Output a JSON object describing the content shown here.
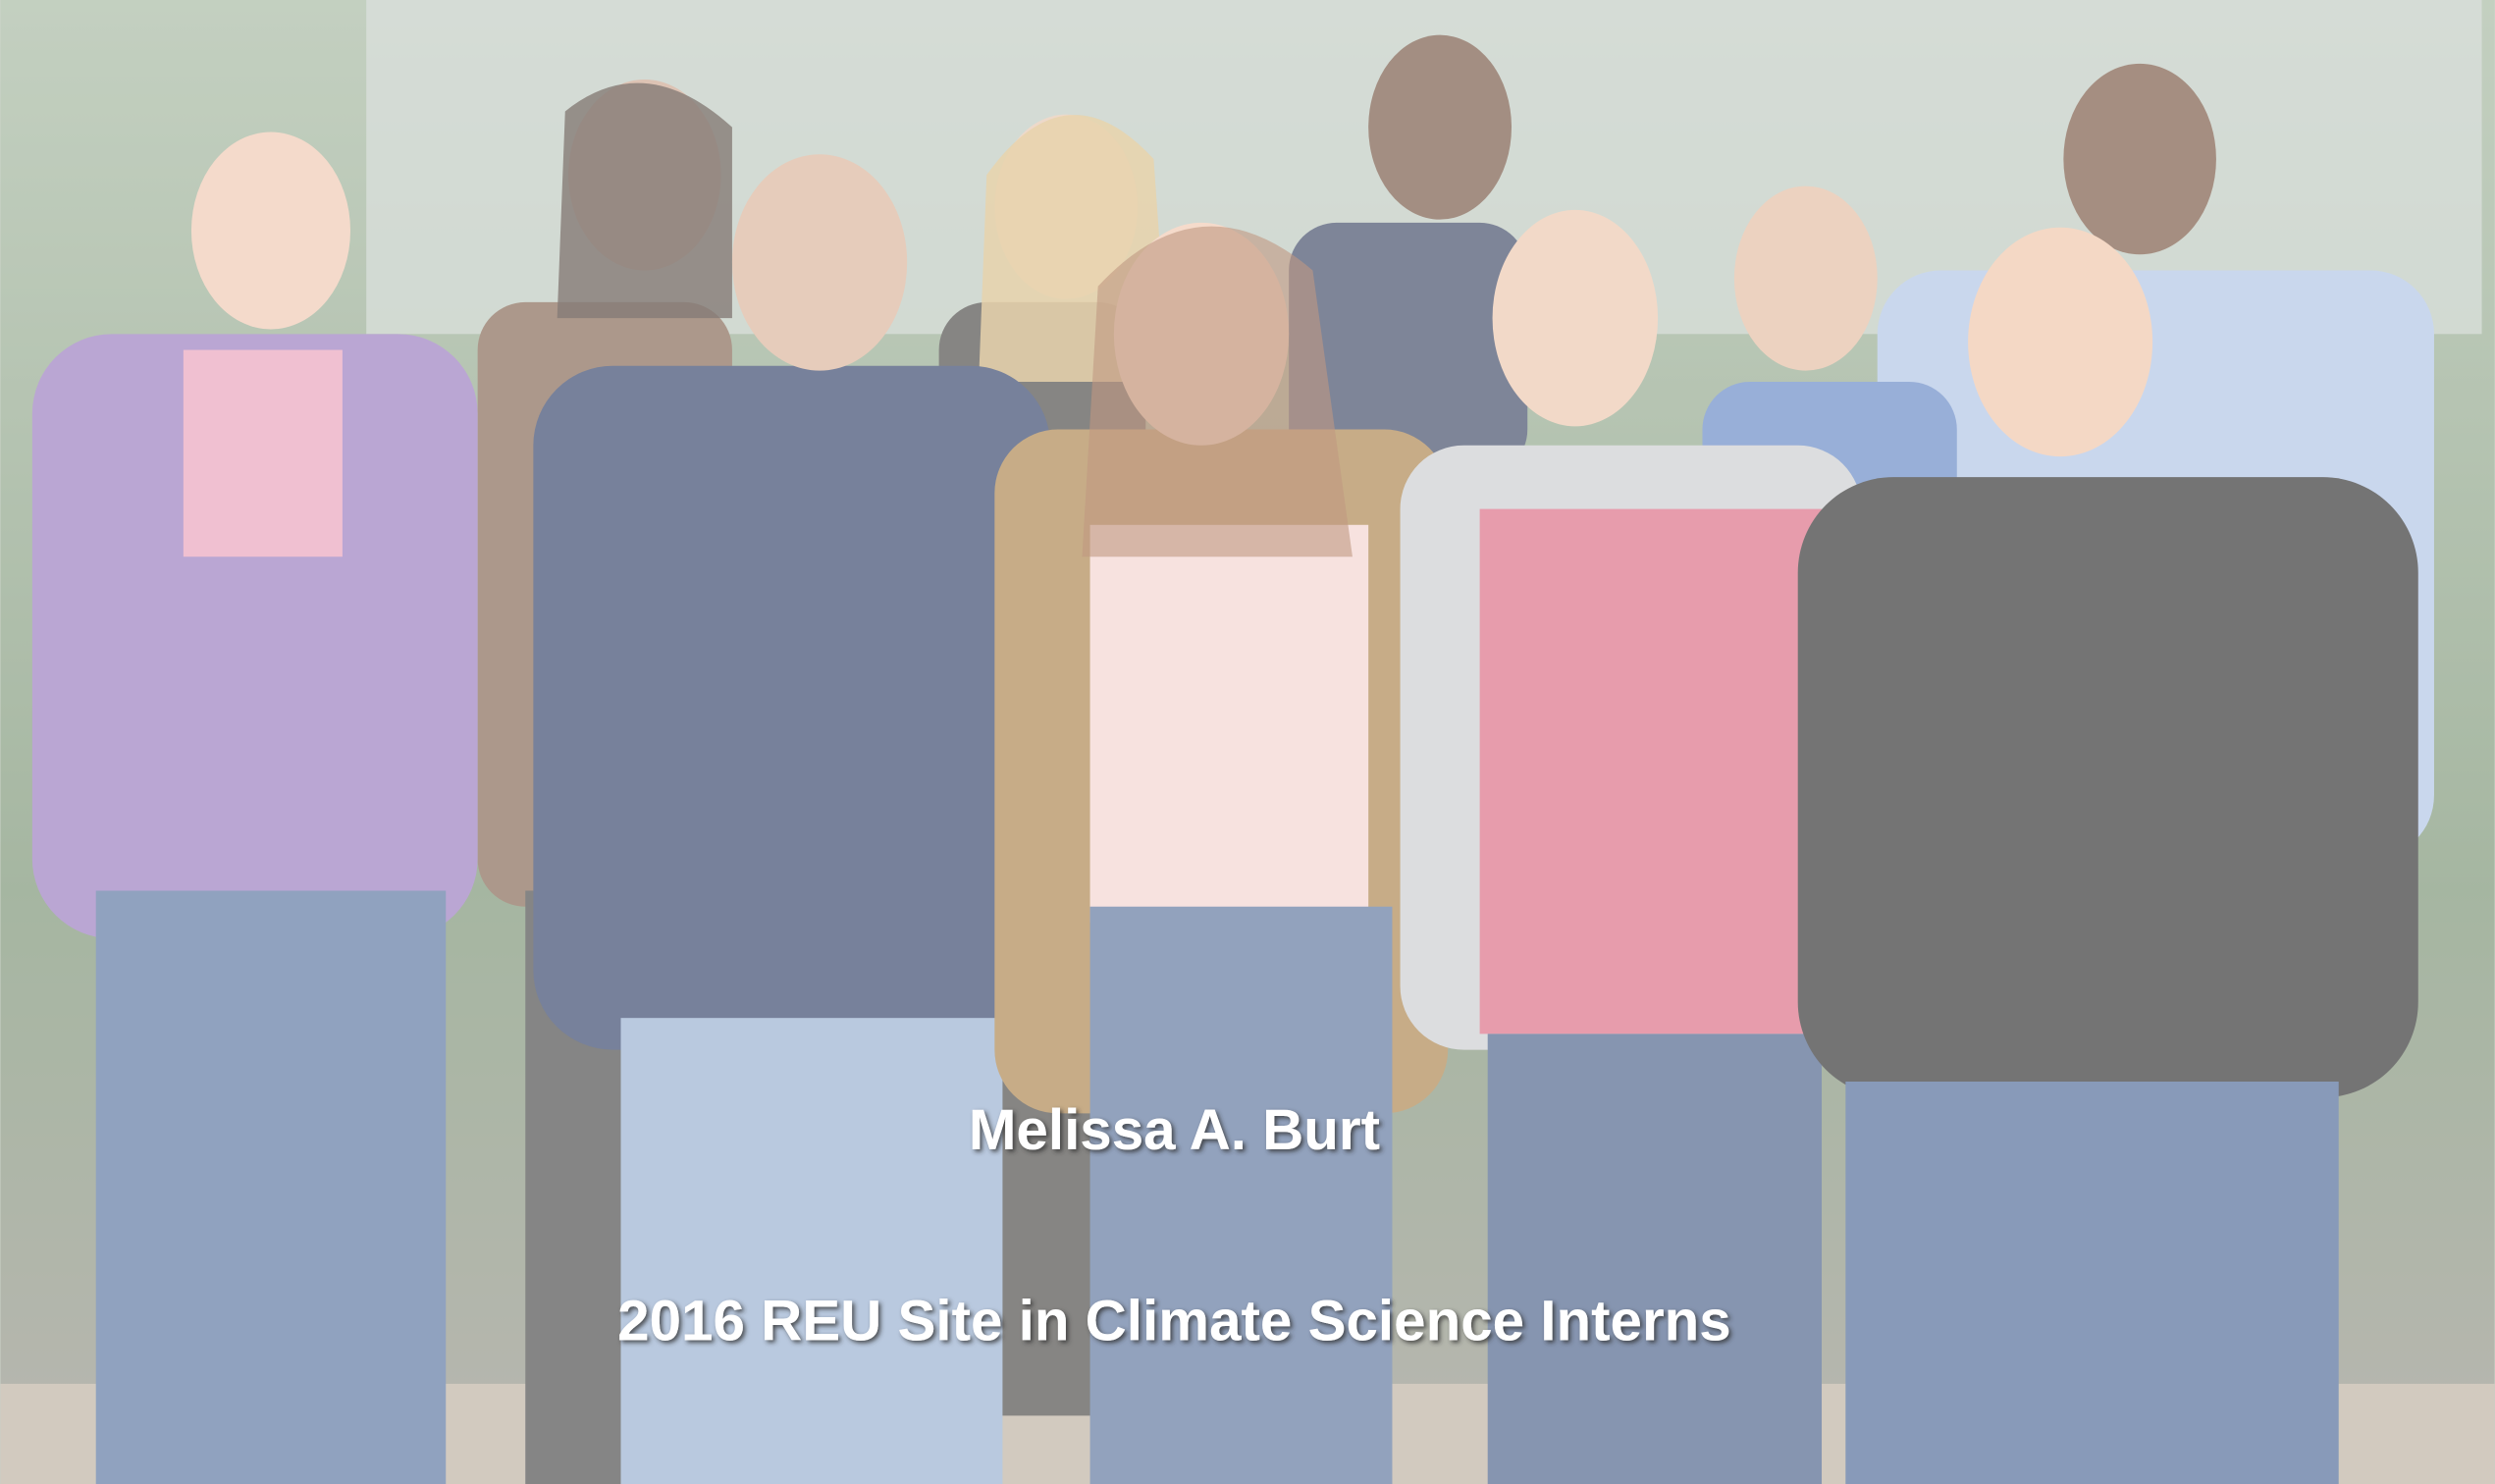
{
  "caption": {
    "name": "Melissa A. Burt",
    "subtitle": "2016 REU Site in Climate Science Interns"
  }
}
